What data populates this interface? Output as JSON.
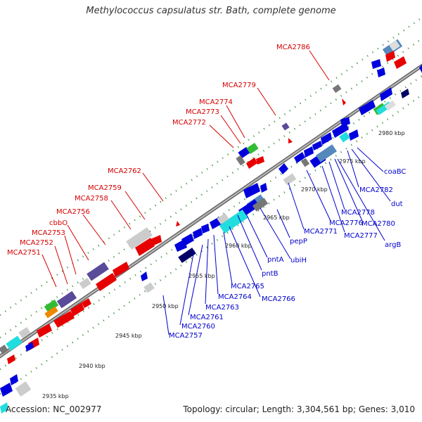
{
  "title": "Methylococcus capsulatus str. Bath, complete genome",
  "accession": "Accession: NC_002977",
  "summary": "Topology: circular; Length: 3,304,561 bp; Genes: 3,010",
  "colors": {
    "backbone": "#888888",
    "forward_gene": "#e60000",
    "reverse_gene": "#0000dd",
    "dots": "#2e8b2e",
    "rna": "#cccccc",
    "cyan": "#22dddd",
    "purple": "#5a4a9a",
    "green": "#33bb33",
    "orange": "#ee8800"
  },
  "ticks": [
    {
      "label": "2935 kbp"
    },
    {
      "label": "2940 kbp"
    },
    {
      "label": "2945 kbp"
    },
    {
      "label": "2950 kbp"
    },
    {
      "label": "2955 kbp"
    },
    {
      "label": "2960 kbp"
    },
    {
      "label": "2965 kbp"
    },
    {
      "label": "2970 kbp"
    },
    {
      "label": "2975 kbp"
    },
    {
      "label": "2980 kbp"
    }
  ],
  "labels_red": [
    "MCA2786",
    "MCA2779",
    "MCA2774",
    "MCA2773",
    "MCA2772",
    "MCA2762",
    "MCA2759",
    "MCA2758",
    "MCA2756",
    "cbbO",
    "MCA2753",
    "MCA2752",
    "MCA2751"
  ],
  "labels_blue": [
    "coaBC",
    "MCA2782",
    "dut",
    "MCA2778",
    "MCA2780",
    "argB",
    "MCA2777",
    "MCA2776",
    "MCA2771",
    "pepP",
    "ubiH",
    "pntA",
    "pntB",
    "MCA2765",
    "MCA2766",
    "MCA2764",
    "MCA2763",
    "MCA2761",
    "MCA2760",
    "MCA2757"
  ]
}
